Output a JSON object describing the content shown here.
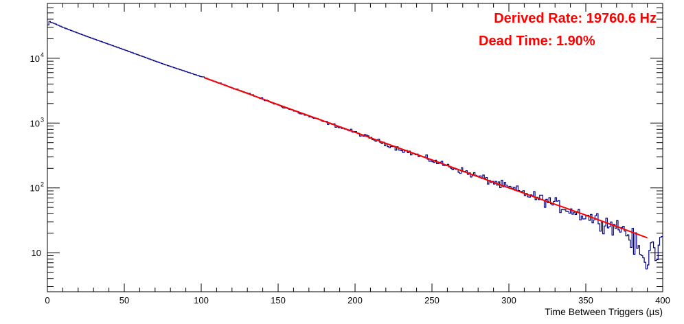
{
  "chart_data": {
    "type": "line",
    "title": "",
    "xlabel": "Time Between Triggers (µs)",
    "ylabel": "",
    "xlim": [
      0,
      400
    ],
    "ylim": [
      2.5,
      70000
    ],
    "yscale": "log",
    "grid": false,
    "legend": "none",
    "x_ticks": [
      0,
      50,
      100,
      150,
      200,
      250,
      300,
      350,
      400
    ],
    "y_ticks": [
      {
        "value": 10,
        "label": "10"
      },
      {
        "value": 100,
        "label": "10",
        "sup": "2"
      },
      {
        "value": 1000,
        "label": "10",
        "sup": "3"
      },
      {
        "value": 10000,
        "label": "10",
        "sup": "4"
      }
    ],
    "annotations": [
      {
        "text": "Derived Rate: 19760.6 Hz",
        "color": "#ff0000"
      },
      {
        "text": "Dead Time: 1.90%",
        "color": "#ff0000"
      }
    ],
    "series": [
      {
        "kind": "histogram-step",
        "color": "#000080",
        "x": [
          0,
          1,
          2,
          5,
          10,
          25,
          50,
          75,
          100,
          125,
          150,
          175,
          200,
          225,
          250,
          275,
          300,
          325,
          350,
          375,
          388,
          390,
          392,
          394,
          396,
          398,
          400
        ],
        "y": [
          28000,
          38000,
          36000,
          34000,
          30000,
          22000,
          13500,
          8200,
          5200,
          3200,
          1900,
          1150,
          720,
          430,
          265,
          165,
          100,
          62,
          37,
          23,
          8,
          5,
          14,
          15,
          6,
          17,
          18
        ]
      },
      {
        "kind": "fit",
        "color": "#ff0000",
        "x": [
          102,
          150,
          200,
          250,
          300,
          350,
          390
        ],
        "y": [
          5000,
          1920,
          720,
          270,
          100,
          38,
          17
        ]
      }
    ]
  }
}
